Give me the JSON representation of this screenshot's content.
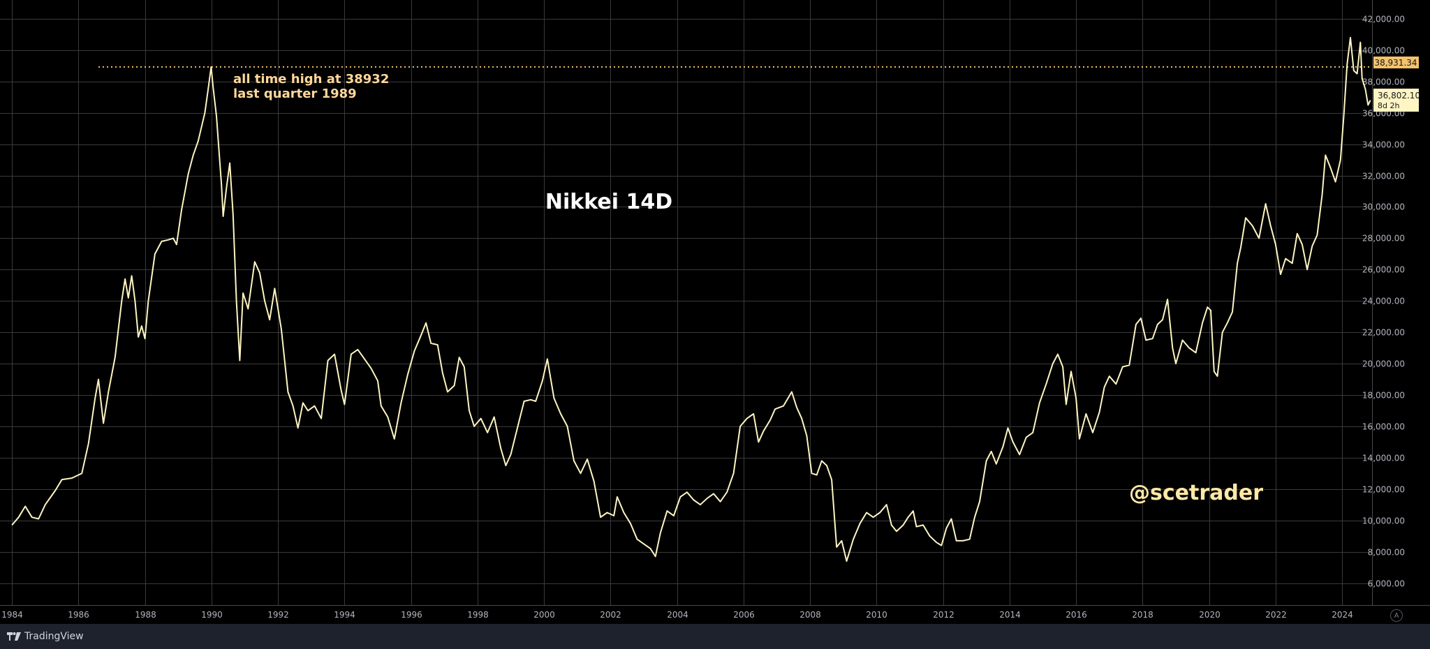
{
  "chart_data": {
    "type": "line",
    "title": "Nikkei 14D",
    "watermark": "@scetrader",
    "annotation": {
      "lines": [
        "all time high at 38932",
        "last quarter 1989"
      ],
      "level": 38931.34
    },
    "price_labels": {
      "ath": "38,931.34",
      "last": "36,802.10",
      "countdown": "8d 2h"
    },
    "y_axis": {
      "range": [
        4600,
        43200
      ],
      "ticks": [
        6000,
        8000,
        10000,
        12000,
        14000,
        16000,
        18000,
        20000,
        22000,
        24000,
        26000,
        28000,
        30000,
        32000,
        34000,
        36000,
        38000,
        40000,
        42000
      ],
      "tick_labels": [
        "6,000.00",
        "8,000.00",
        "10,000.00",
        "12,000.00",
        "14,000.00",
        "16,000.00",
        "18,000.00",
        "20,000.00",
        "22,000.00",
        "24,000.00",
        "26,000.00",
        "28,000.00",
        "30,000.00",
        "32,000.00",
        "34,000.00",
        "36,000.00",
        "38,000.00",
        "40,000.00",
        "42,000.00"
      ]
    },
    "x_axis": {
      "range": [
        1983.85,
        2024.9
      ],
      "ticks": [
        1984,
        1986,
        1988,
        1990,
        1992,
        1994,
        1996,
        1998,
        2000,
        2002,
        2004,
        2006,
        2008,
        2010,
        2012,
        2014,
        2016,
        2018,
        2020,
        2022,
        2024
      ],
      "tick_labels": [
        "1984",
        "1986",
        "1988",
        "1990",
        "1992",
        "1994",
        "1996",
        "1998",
        "2000",
        "2002",
        "2004",
        "2006",
        "2008",
        "2010",
        "2012",
        "2014",
        "2016",
        "2018",
        "2020",
        "2022",
        "2024"
      ]
    },
    "grid": true,
    "series": [
      {
        "color": "#fff5c2",
        "points": [
          [
            1984.0,
            9700
          ],
          [
            1984.2,
            10200
          ],
          [
            1984.4,
            10900
          ],
          [
            1984.6,
            10200
          ],
          [
            1984.8,
            10100
          ],
          [
            1985.0,
            11000
          ],
          [
            1985.3,
            11900
          ],
          [
            1985.5,
            12600
          ],
          [
            1985.8,
            12700
          ],
          [
            1986.0,
            12900
          ],
          [
            1986.1,
            13000
          ],
          [
            1986.3,
            14900
          ],
          [
            1986.5,
            17800
          ],
          [
            1986.6,
            19000
          ],
          [
            1986.75,
            16200
          ],
          [
            1986.9,
            18200
          ],
          [
            1987.1,
            20400
          ],
          [
            1987.3,
            24000
          ],
          [
            1987.4,
            25400
          ],
          [
            1987.5,
            24200
          ],
          [
            1987.6,
            25600
          ],
          [
            1987.7,
            24000
          ],
          [
            1987.8,
            21700
          ],
          [
            1987.9,
            22400
          ],
          [
            1988.0,
            21600
          ],
          [
            1988.1,
            24000
          ],
          [
            1988.3,
            27000
          ],
          [
            1988.5,
            27800
          ],
          [
            1988.7,
            27900
          ],
          [
            1988.85,
            28000
          ],
          [
            1988.95,
            27600
          ],
          [
            1989.1,
            29800
          ],
          [
            1989.3,
            32100
          ],
          [
            1989.45,
            33300
          ],
          [
            1989.6,
            34200
          ],
          [
            1989.8,
            36000
          ],
          [
            1989.9,
            37500
          ],
          [
            1989.99,
            38930
          ],
          [
            1990.05,
            37600
          ],
          [
            1990.15,
            35800
          ],
          [
            1990.3,
            31400
          ],
          [
            1990.35,
            29400
          ],
          [
            1990.45,
            31200
          ],
          [
            1990.55,
            32800
          ],
          [
            1990.65,
            29500
          ],
          [
            1990.75,
            24000
          ],
          [
            1990.85,
            20200
          ],
          [
            1990.95,
            24500
          ],
          [
            1991.1,
            23500
          ],
          [
            1991.3,
            26500
          ],
          [
            1991.45,
            25800
          ],
          [
            1991.6,
            24000
          ],
          [
            1991.75,
            22800
          ],
          [
            1991.9,
            24800
          ],
          [
            1992.1,
            22200
          ],
          [
            1992.3,
            18200
          ],
          [
            1992.45,
            17300
          ],
          [
            1992.6,
            15900
          ],
          [
            1992.75,
            17500
          ],
          [
            1992.9,
            17000
          ],
          [
            1993.1,
            17300
          ],
          [
            1993.3,
            16500
          ],
          [
            1993.5,
            20200
          ],
          [
            1993.7,
            20600
          ],
          [
            1993.9,
            18300
          ],
          [
            1994.0,
            17400
          ],
          [
            1994.2,
            20600
          ],
          [
            1994.4,
            20900
          ],
          [
            1994.6,
            20300
          ],
          [
            1994.8,
            19700
          ],
          [
            1995.0,
            18900
          ],
          [
            1995.1,
            17300
          ],
          [
            1995.3,
            16600
          ],
          [
            1995.5,
            15200
          ],
          [
            1995.7,
            17500
          ],
          [
            1995.9,
            19300
          ],
          [
            1996.1,
            20800
          ],
          [
            1996.3,
            21800
          ],
          [
            1996.45,
            22600
          ],
          [
            1996.6,
            21300
          ],
          [
            1996.8,
            21200
          ],
          [
            1996.95,
            19400
          ],
          [
            1997.1,
            18200
          ],
          [
            1997.3,
            18600
          ],
          [
            1997.45,
            20400
          ],
          [
            1997.6,
            19800
          ],
          [
            1997.75,
            17000
          ],
          [
            1997.9,
            16000
          ],
          [
            1998.1,
            16500
          ],
          [
            1998.3,
            15600
          ],
          [
            1998.5,
            16600
          ],
          [
            1998.7,
            14600
          ],
          [
            1998.85,
            13500
          ],
          [
            1999.0,
            14200
          ],
          [
            1999.2,
            15900
          ],
          [
            1999.4,
            17600
          ],
          [
            1999.6,
            17700
          ],
          [
            1999.75,
            17600
          ],
          [
            1999.95,
            18900
          ],
          [
            2000.1,
            20300
          ],
          [
            2000.3,
            17800
          ],
          [
            2000.5,
            16800
          ],
          [
            2000.7,
            16000
          ],
          [
            2000.9,
            13800
          ],
          [
            2001.1,
            13000
          ],
          [
            2001.3,
            13900
          ],
          [
            2001.5,
            12500
          ],
          [
            2001.7,
            10200
          ],
          [
            2001.9,
            10500
          ],
          [
            2002.1,
            10300
          ],
          [
            2002.2,
            11500
          ],
          [
            2002.4,
            10500
          ],
          [
            2002.6,
            9800
          ],
          [
            2002.8,
            8800
          ],
          [
            2003.0,
            8500
          ],
          [
            2003.2,
            8200
          ],
          [
            2003.35,
            7700
          ],
          [
            2003.5,
            9200
          ],
          [
            2003.7,
            10600
          ],
          [
            2003.9,
            10300
          ],
          [
            2004.1,
            11500
          ],
          [
            2004.3,
            11800
          ],
          [
            2004.5,
            11300
          ],
          [
            2004.7,
            11000
          ],
          [
            2004.9,
            11400
          ],
          [
            2005.1,
            11700
          ],
          [
            2005.3,
            11200
          ],
          [
            2005.5,
            11800
          ],
          [
            2005.7,
            13000
          ],
          [
            2005.9,
            16000
          ],
          [
            2006.1,
            16500
          ],
          [
            2006.3,
            16800
          ],
          [
            2006.45,
            15000
          ],
          [
            2006.6,
            15700
          ],
          [
            2006.8,
            16400
          ],
          [
            2006.95,
            17100
          ],
          [
            2007.2,
            17300
          ],
          [
            2007.45,
            18200
          ],
          [
            2007.6,
            17200
          ],
          [
            2007.75,
            16500
          ],
          [
            2007.9,
            15400
          ],
          [
            2008.05,
            13000
          ],
          [
            2008.2,
            12900
          ],
          [
            2008.35,
            13800
          ],
          [
            2008.5,
            13500
          ],
          [
            2008.65,
            12600
          ],
          [
            2008.8,
            8300
          ],
          [
            2008.95,
            8700
          ],
          [
            2009.1,
            7400
          ],
          [
            2009.3,
            8800
          ],
          [
            2009.5,
            9800
          ],
          [
            2009.7,
            10500
          ],
          [
            2009.9,
            10200
          ],
          [
            2010.1,
            10500
          ],
          [
            2010.3,
            11000
          ],
          [
            2010.45,
            9700
          ],
          [
            2010.6,
            9300
          ],
          [
            2010.8,
            9700
          ],
          [
            2010.95,
            10200
          ],
          [
            2011.1,
            10600
          ],
          [
            2011.2,
            9600
          ],
          [
            2011.4,
            9700
          ],
          [
            2011.6,
            9000
          ],
          [
            2011.8,
            8600
          ],
          [
            2011.95,
            8400
          ],
          [
            2012.1,
            9500
          ],
          [
            2012.25,
            10100
          ],
          [
            2012.4,
            8700
          ],
          [
            2012.6,
            8700
          ],
          [
            2012.8,
            8800
          ],
          [
            2012.95,
            10200
          ],
          [
            2013.1,
            11200
          ],
          [
            2013.3,
            13800
          ],
          [
            2013.45,
            14400
          ],
          [
            2013.6,
            13600
          ],
          [
            2013.8,
            14700
          ],
          [
            2013.95,
            15900
          ],
          [
            2014.1,
            15000
          ],
          [
            2014.3,
            14200
          ],
          [
            2014.5,
            15300
          ],
          [
            2014.7,
            15600
          ],
          [
            2014.9,
            17500
          ],
          [
            2015.1,
            18700
          ],
          [
            2015.3,
            20000
          ],
          [
            2015.45,
            20600
          ],
          [
            2015.6,
            19800
          ],
          [
            2015.7,
            17400
          ],
          [
            2015.85,
            19500
          ],
          [
            2016.0,
            17800
          ],
          [
            2016.1,
            15200
          ],
          [
            2016.3,
            16800
          ],
          [
            2016.5,
            15600
          ],
          [
            2016.7,
            16900
          ],
          [
            2016.85,
            18500
          ],
          [
            2017.0,
            19200
          ],
          [
            2017.2,
            18700
          ],
          [
            2017.4,
            19800
          ],
          [
            2017.6,
            19900
          ],
          [
            2017.8,
            22500
          ],
          [
            2017.95,
            22900
          ],
          [
            2018.1,
            21500
          ],
          [
            2018.3,
            21600
          ],
          [
            2018.45,
            22500
          ],
          [
            2018.6,
            22800
          ],
          [
            2018.75,
            24100
          ],
          [
            2018.9,
            21000
          ],
          [
            2019.0,
            20000
          ],
          [
            2019.2,
            21500
          ],
          [
            2019.4,
            21000
          ],
          [
            2019.6,
            20700
          ],
          [
            2019.8,
            22600
          ],
          [
            2019.95,
            23600
          ],
          [
            2020.05,
            23400
          ],
          [
            2020.15,
            19500
          ],
          [
            2020.25,
            19200
          ],
          [
            2020.4,
            22000
          ],
          [
            2020.55,
            22600
          ],
          [
            2020.7,
            23300
          ],
          [
            2020.85,
            26400
          ],
          [
            2020.95,
            27400
          ],
          [
            2021.1,
            29300
          ],
          [
            2021.3,
            28800
          ],
          [
            2021.5,
            28000
          ],
          [
            2021.7,
            30200
          ],
          [
            2021.85,
            28800
          ],
          [
            2022.0,
            27600
          ],
          [
            2022.15,
            25700
          ],
          [
            2022.3,
            26700
          ],
          [
            2022.5,
            26400
          ],
          [
            2022.65,
            28300
          ],
          [
            2022.8,
            27600
          ],
          [
            2022.95,
            26000
          ],
          [
            2023.1,
            27500
          ],
          [
            2023.25,
            28200
          ],
          [
            2023.4,
            30800
          ],
          [
            2023.5,
            33300
          ],
          [
            2023.65,
            32500
          ],
          [
            2023.8,
            31600
          ],
          [
            2023.95,
            33000
          ],
          [
            2024.05,
            35800
          ],
          [
            2024.15,
            39100
          ],
          [
            2024.25,
            40800
          ],
          [
            2024.35,
            38700
          ],
          [
            2024.45,
            38500
          ],
          [
            2024.55,
            40500
          ],
          [
            2024.6,
            38200
          ],
          [
            2024.7,
            37500
          ],
          [
            2024.78,
            36500
          ],
          [
            2024.85,
            36802
          ]
        ]
      }
    ]
  },
  "footer": {
    "brand": "TradingView",
    "auto_label": "A"
  },
  "colors": {
    "background": "#000000",
    "line": "#fff5c2",
    "annotation_text": "#ffd89b",
    "ath_line": "#f5c26b",
    "watermark": "#ffe9a6",
    "grid": "#3a3a3a",
    "axis_text": "#b2b5be"
  }
}
